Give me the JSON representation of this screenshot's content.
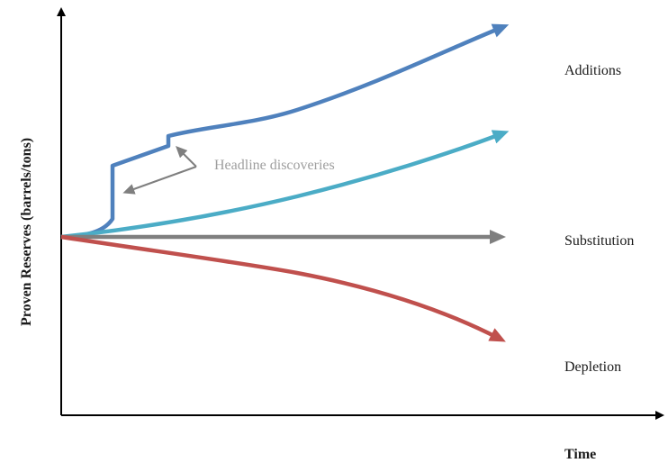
{
  "axes": {
    "y_title": "Proven Reserves (barrels/tons)",
    "x_title": "Time"
  },
  "scenarios": [
    {
      "name": "Additions",
      "color": "#4f81bd"
    },
    {
      "name": "",
      "color": "#4bacc6"
    },
    {
      "name": "Substitution",
      "color": "#7f7f7f"
    },
    {
      "name": "Depletion",
      "color": "#c0504d"
    }
  ],
  "annotation": {
    "text": "Headline discoveries",
    "color": "#9e9e9e"
  },
  "colors": {
    "axis": "#000000",
    "annotation_arrow": "#7f7f7f"
  }
}
